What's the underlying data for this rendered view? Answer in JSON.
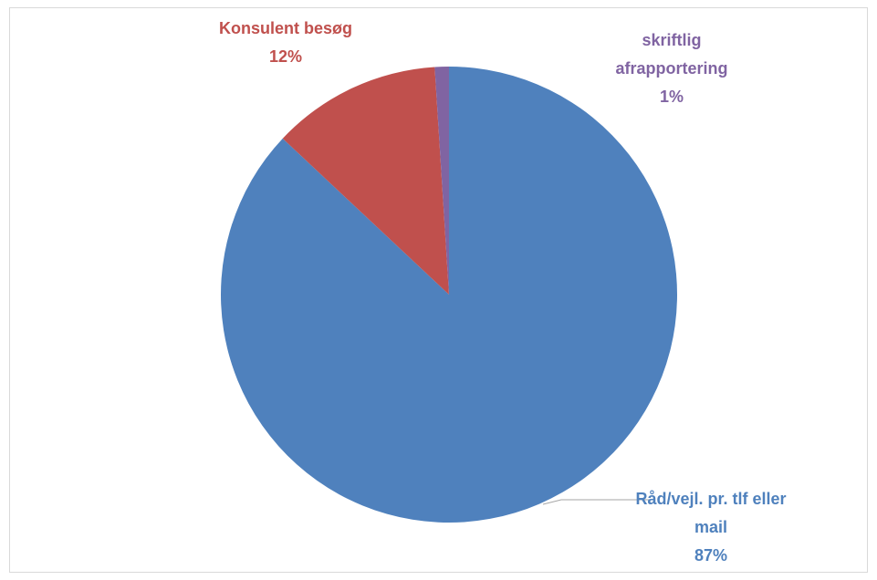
{
  "chart_data": {
    "type": "pie",
    "categories": [
      "Råd/vejl. pr. tlf eller mail",
      "Konsulent besøg",
      "skriftlig afrapportering"
    ],
    "values": [
      87,
      12,
      1
    ],
    "value_labels": [
      "87%",
      "12%",
      "1%"
    ],
    "colors": [
      "#4f81bd",
      "#c0504d",
      "#8064a2"
    ]
  }
}
